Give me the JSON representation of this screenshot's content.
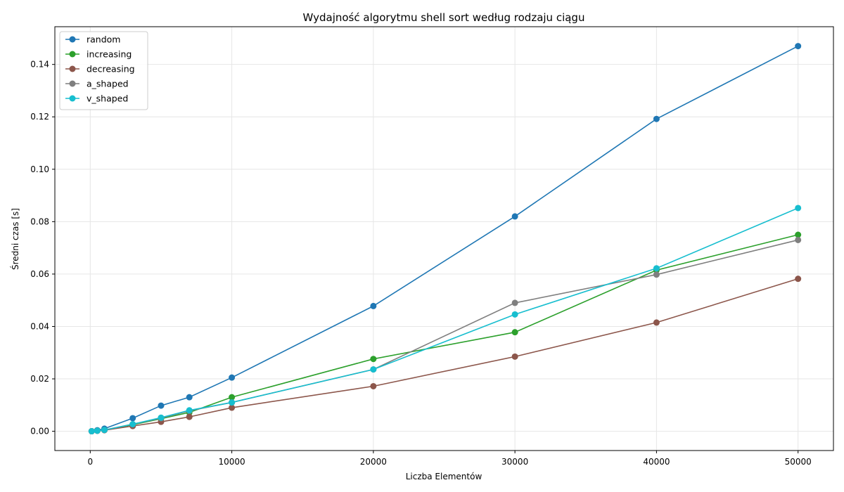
{
  "chart_data": {
    "type": "line",
    "title": "Wydajność algorytmu shell sort według rodzaju ciągu",
    "xlabel": "Liczba Elementów",
    "ylabel": "Średni czas [s]",
    "xlim": [
      -2500,
      52500
    ],
    "ylim": [
      -0.00735,
      0.1544
    ],
    "x_ticks": [
      0,
      10000,
      20000,
      30000,
      40000,
      50000
    ],
    "y_ticks": [
      0.0,
      0.02,
      0.04,
      0.06,
      0.08,
      0.1,
      0.12,
      0.14
    ],
    "x_tick_labels": [
      "0",
      "10000",
      "20000",
      "30000",
      "40000",
      "50000"
    ],
    "y_tick_labels": [
      "0.00",
      "0.02",
      "0.04",
      "0.06",
      "0.08",
      "0.10",
      "0.12",
      "0.14"
    ],
    "grid": true,
    "legend_position": "top-left",
    "x": [
      100,
      500,
      1000,
      3000,
      5000,
      7000,
      10000,
      20000,
      30000,
      40000,
      50000
    ],
    "series": [
      {
        "name": "random",
        "color": "#1f77b4",
        "values": [
          2e-05,
          0.0004,
          0.001,
          0.005,
          0.0098,
          0.013,
          0.0205,
          0.0478,
          0.082,
          0.1192,
          0.147
        ]
      },
      {
        "name": "increasing",
        "color": "#2ca02c",
        "values": [
          1e-05,
          0.0002,
          0.0005,
          0.0025,
          0.0048,
          0.0072,
          0.013,
          0.0276,
          0.0378,
          0.0615,
          0.075
        ]
      },
      {
        "name": "decreasing",
        "color": "#8c564b",
        "values": [
          1e-05,
          0.0002,
          0.0004,
          0.002,
          0.0036,
          0.0055,
          0.009,
          0.0172,
          0.0285,
          0.0415,
          0.0582
        ]
      },
      {
        "name": "a_shaped",
        "color": "#7f7f7f",
        "values": [
          1e-05,
          0.0002,
          0.0005,
          0.0027,
          0.005,
          0.0078,
          0.011,
          0.0236,
          0.049,
          0.0598,
          0.073
        ]
      },
      {
        "name": "v_shaped",
        "color": "#17becf",
        "values": [
          1e-05,
          0.0002,
          0.0005,
          0.0027,
          0.0052,
          0.008,
          0.011,
          0.0236,
          0.0446,
          0.0622,
          0.0852
        ]
      }
    ]
  }
}
